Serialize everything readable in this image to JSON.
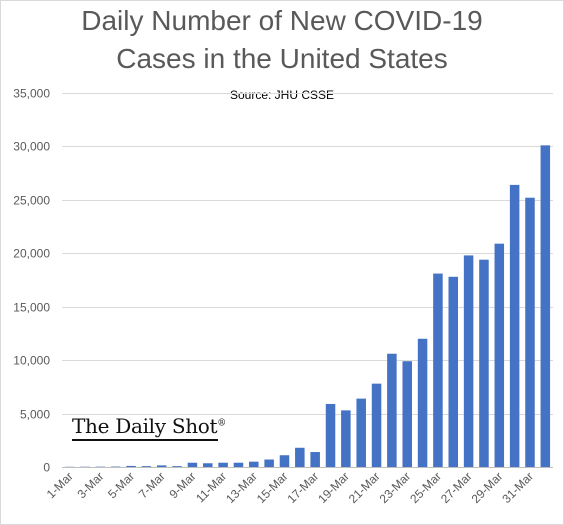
{
  "chart_data": {
    "type": "bar",
    "title_lines": [
      "Daily Number of New COVID-19",
      "Cases in the United States"
    ],
    "subtitle": "Source: JHU CSSE",
    "watermark": "The Daily Shot",
    "watermark_mark": "®",
    "xlabel": "",
    "ylabel": "",
    "ylim": [
      0,
      35000
    ],
    "yticks": [
      0,
      5000,
      10000,
      15000,
      20000,
      25000,
      30000,
      35000
    ],
    "ytick_labels": [
      "0",
      "5,000",
      "10,000",
      "15,000",
      "20,000",
      "25,000",
      "30,000",
      "35,000"
    ],
    "grid": true,
    "legend": "none",
    "bar_color": "#4472c4",
    "categories": [
      "1-Mar",
      "2-Mar",
      "3-Mar",
      "4-Mar",
      "5-Mar",
      "6-Mar",
      "7-Mar",
      "8-Mar",
      "9-Mar",
      "10-Mar",
      "11-Mar",
      "12-Mar",
      "13-Mar",
      "14-Mar",
      "15-Mar",
      "16-Mar",
      "17-Mar",
      "18-Mar",
      "19-Mar",
      "20-Mar",
      "21-Mar",
      "22-Mar",
      "23-Mar",
      "24-Mar",
      "25-Mar",
      "26-Mar",
      "27-Mar",
      "28-Mar",
      "29-Mar",
      "30-Mar",
      "31-Mar",
      "1-Apr"
    ],
    "xtick_labels": [
      "1-Mar",
      "",
      "3-Mar",
      "",
      "5-Mar",
      "",
      "7-Mar",
      "",
      "9-Mar",
      "",
      "11-Mar",
      "",
      "13-Mar",
      "",
      "15-Mar",
      "",
      "17-Mar",
      "",
      "19-Mar",
      "",
      "21-Mar",
      "",
      "23-Mar",
      "",
      "25-Mar",
      "",
      "27-Mar",
      "",
      "29-Mar",
      "",
      "31-Mar",
      ""
    ],
    "values": [
      20,
      25,
      30,
      40,
      100,
      80,
      150,
      80,
      400,
      350,
      400,
      400,
      500,
      700,
      1100,
      1800,
      1400,
      5900,
      5300,
      6400,
      7800,
      10600,
      9900,
      12000,
      18100,
      17800,
      19800,
      19400,
      20900,
      26400,
      25200,
      30100
    ]
  }
}
